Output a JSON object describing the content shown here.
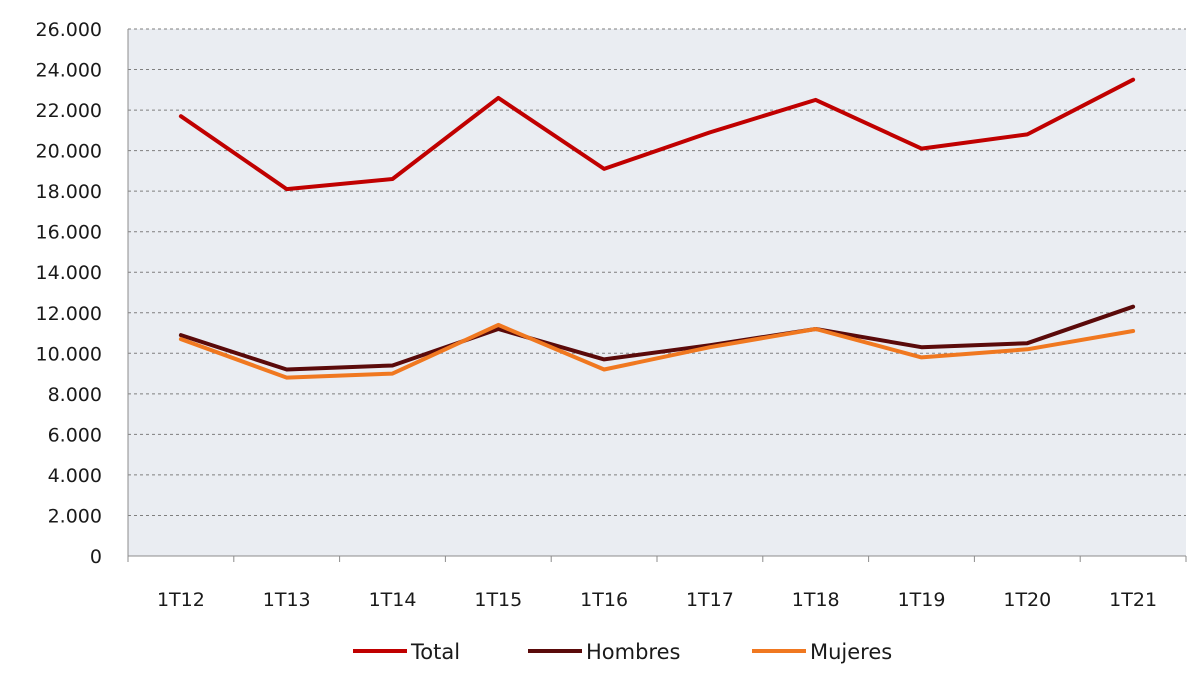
{
  "chart_data": {
    "type": "line",
    "categories": [
      "1T12",
      "1T13",
      "1T14",
      "1T15",
      "1T16",
      "1T17",
      "1T18",
      "1T19",
      "1T20",
      "1T21"
    ],
    "series": [
      {
        "name": "Total",
        "color": "#c00000",
        "values": [
          21700,
          18100,
          18600,
          22600,
          19100,
          20900,
          22500,
          20100,
          20800,
          23500
        ]
      },
      {
        "name": "Hombres",
        "color": "#5a0a0a",
        "values": [
          10900,
          9200,
          9400,
          11200,
          9700,
          10400,
          11200,
          10300,
          10500,
          12300
        ]
      },
      {
        "name": "Mujeres",
        "color": "#f07820",
        "values": [
          10700,
          8800,
          9000,
          11400,
          9200,
          10300,
          11200,
          9800,
          10200,
          11100
        ]
      }
    ],
    "ylim": [
      0,
      26000
    ],
    "yticks": [
      "0",
      "2.000",
      "4.000",
      "6.000",
      "8.000",
      "10.000",
      "12.000",
      "14.000",
      "16.000",
      "18.000",
      "20.000",
      "22.000",
      "24.000",
      "26.000"
    ],
    "ytick_values": [
      0,
      2000,
      4000,
      6000,
      8000,
      10000,
      12000,
      14000,
      16000,
      18000,
      20000,
      22000,
      24000,
      26000
    ],
    "grid": true,
    "legend_position": "bottom",
    "plot_background": "#eaedf2"
  }
}
